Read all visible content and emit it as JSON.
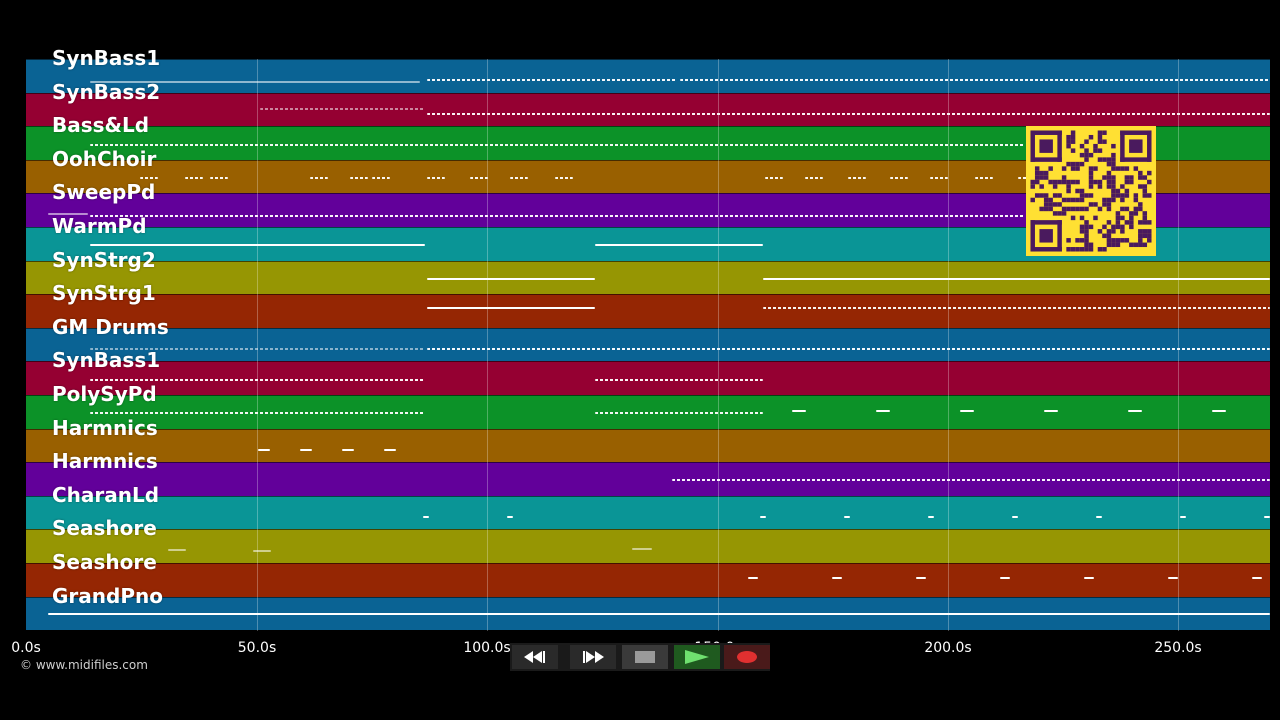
{
  "tracks": [
    {
      "name": "SynBass1",
      "color": "#0a6394"
    },
    {
      "name": "SynBass2",
      "color": "#950032"
    },
    {
      "name": "Bass&Ld",
      "color": "#0c9228"
    },
    {
      "name": "OohChoir",
      "color": "#996000"
    },
    {
      "name": "SweepPd",
      "color": "#62009a"
    },
    {
      "name": "WarmPd",
      "color": "#0a9596"
    },
    {
      "name": "SynStrg2",
      "color": "#969603"
    },
    {
      "name": "SynStrg1",
      "color": "#952603"
    },
    {
      "name": "GM Drums",
      "color": "#0a6394"
    },
    {
      "name": "SynBass1",
      "color": "#950032"
    },
    {
      "name": "PolySyPd",
      "color": "#0c9228"
    },
    {
      "name": "Harmnics",
      "color": "#996000"
    },
    {
      "name": "Harmnics",
      "color": "#62009a"
    },
    {
      "name": "CharanLd",
      "color": "#0a9596"
    },
    {
      "name": "Seashore",
      "color": "#969603"
    },
    {
      "name": "Seashore",
      "color": "#952603"
    },
    {
      "name": "GrandPno",
      "color": "#0a6394"
    }
  ],
  "timeline": {
    "ticks": [
      "0.0s",
      "50.0s",
      "100.0s",
      "150.0s",
      "200.0s",
      "250.0s"
    ]
  },
  "credit": "© www.midifiles.com",
  "transport": {
    "rewind": "rewind-icon",
    "fast_forward": "fast-forward-icon",
    "stop": "stop-icon",
    "play": "play-icon",
    "record": "record-icon"
  },
  "qr_code": "qr-code"
}
